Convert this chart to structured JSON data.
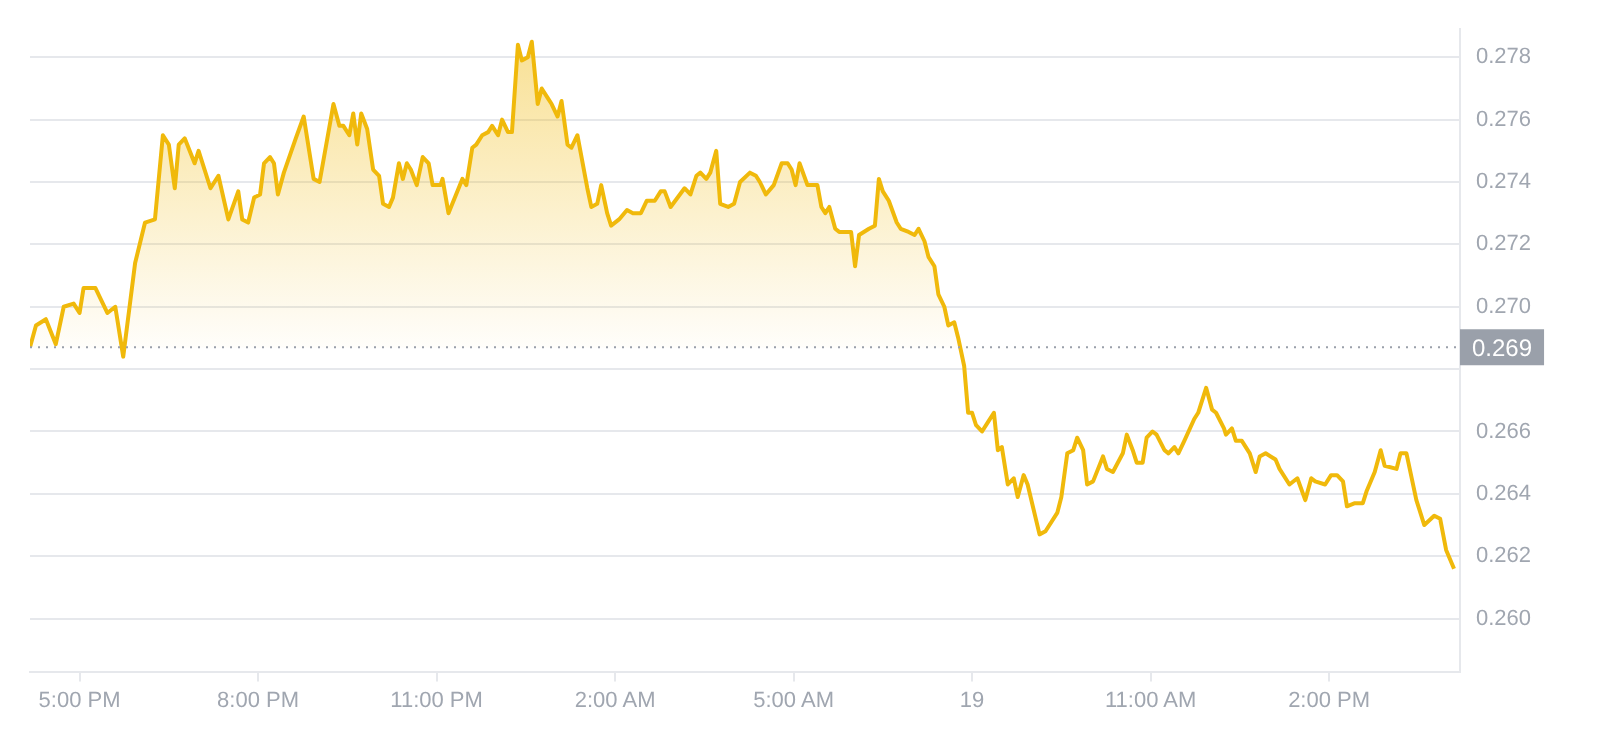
{
  "chart_data": {
    "type": "area",
    "x": [
      "--01-18T16:10",
      "--01-18T16:16",
      "--01-18T16:26",
      "--01-18T16:36",
      "--01-18T16:44",
      "--01-18T16:54",
      "--01-18T17:00",
      "--01-18T17:04",
      "--01-18T17:16",
      "--01-18T17:28",
      "--01-18T17:36",
      "--01-18T17:44",
      "--01-18T17:56",
      "--01-18T18:06",
      "--01-18T18:16",
      "--01-18T18:24",
      "--01-18T18:30",
      "--01-18T18:36",
      "--01-18T18:40",
      "--01-18T18:46",
      "--01-18T18:56",
      "--01-18T19:00",
      "--01-18T19:12",
      "--01-18T19:20",
      "--01-18T19:30",
      "--01-18T19:40",
      "--01-18T19:44",
      "--01-18T19:50",
      "--01-18T19:56",
      "--01-18T20:02",
      "--01-18T20:06",
      "--01-18T20:12",
      "--01-18T20:16",
      "--01-18T20:20",
      "--01-18T20:26",
      "--01-18T20:38",
      "--01-18T20:46",
      "--01-18T20:56",
      "--01-18T21:02",
      "--01-18T21:16",
      "--01-18T21:22",
      "--01-18T21:26",
      "--01-18T21:32",
      "--01-18T21:36",
      "--01-18T21:40",
      "--01-18T21:44",
      "--01-18T21:50",
      "--01-18T21:56",
      "--01-18T22:02",
      "--01-18T22:06",
      "--01-18T22:12",
      "--01-18T22:16",
      "--01-18T22:22",
      "--01-18T22:26",
      "--01-18T22:30",
      "--01-18T22:34",
      "--01-18T22:40",
      "--01-18T22:46",
      "--01-18T22:52",
      "--01-18T22:56",
      "--01-18T23:04",
      "--01-18T23:06",
      "--01-18T23:12",
      "--01-18T23:26",
      "--01-18T23:30",
      "--01-18T23:36",
      "--01-18T23:40",
      "--01-18T23:46",
      "--01-18T23:52",
      "--01-18T23:56",
      "--01-19T00:02",
      "--01-19T00:06",
      "--01-19T00:12",
      "--01-19T00:16",
      "--01-19T00:22",
      "--01-19T00:26",
      "--01-19T00:32",
      "--01-19T00:36",
      "--01-19T00:42",
      "--01-19T00:46",
      "--01-19T00:52",
      "--01-19T00:56",
      "--01-19T01:02",
      "--01-19T01:06",
      "--01-19T01:12",
      "--01-19T01:16",
      "--01-19T01:22",
      "--01-19T01:32",
      "--01-19T01:36",
      "--01-19T01:42",
      "--01-19T01:46",
      "--01-19T01:52",
      "--01-19T01:56",
      "--01-19T02:04",
      "--01-19T02:12",
      "--01-19T02:18",
      "--01-19T02:26",
      "--01-19T02:32",
      "--01-19T02:40",
      "--01-19T02:46",
      "--01-19T02:50",
      "--01-19T02:56",
      "--01-19T03:10",
      "--01-19T03:16",
      "--01-19T03:22",
      "--01-19T03:26",
      "--01-19T03:32",
      "--01-19T03:36",
      "--01-19T03:42",
      "--01-19T03:46",
      "--01-19T03:54",
      "--01-19T04:00",
      "--01-19T04:06",
      "--01-19T04:16",
      "--01-19T04:22",
      "--01-19T04:26",
      "--01-19T04:32",
      "--01-19T04:40",
      "--01-19T04:48",
      "--01-19T04:54",
      "--01-19T04:58",
      "--01-19T05:02",
      "--01-19T05:06",
      "--01-19T05:14",
      "--01-19T05:20",
      "--01-19T05:24",
      "--01-19T05:28",
      "--01-19T05:32",
      "--01-19T05:36",
      "--01-19T05:42",
      "--01-19T05:46",
      "--01-19T05:58",
      "--01-19T06:02",
      "--01-19T06:06",
      "--01-19T06:16",
      "--01-19T06:22",
      "--01-19T06:26",
      "--01-19T06:30",
      "--01-19T06:36",
      "--01-19T06:44",
      "--01-19T06:48",
      "--01-19T06:56",
      "--01-19T07:02",
      "--01-19T07:06",
      "--01-19T07:12",
      "--01-19T07:16",
      "--01-19T07:22",
      "--01-19T07:26",
      "--01-19T07:32",
      "--01-19T07:36",
      "--01-19T07:42",
      "--01-19T07:46",
      "--01-19T07:52",
      "--01-19T07:56",
      "--01-19T08:00",
      "--01-19T08:04",
      "--01-19T08:10",
      "--01-19T08:16",
      "--01-19T08:22",
      "--01-19T08:26",
      "--01-19T08:30",
      "--01-19T08:36",
      "--01-19T08:42",
      "--01-19T08:46",
      "--01-19T08:52",
      "--01-19T08:56",
      "--01-19T09:08",
      "--01-19T09:14",
      "--01-19T09:26",
      "--01-19T09:30",
      "--01-19T09:36",
      "--01-19T09:42",
      "--01-19T09:46",
      "--01-19T09:52",
      "--01-19T09:56",
      "--01-19T10:02",
      "--01-19T10:12",
      "--01-19T10:16",
      "--01-19T10:22",
      "--01-19T10:32",
      "--01-19T10:36",
      "--01-19T10:42",
      "--01-19T10:46",
      "--01-19T10:52",
      "--01-19T10:56",
      "--01-19T11:02",
      "--01-19T11:06",
      "--01-19T11:14",
      "--01-19T11:18",
      "--01-19T11:24",
      "--01-19T11:28",
      "--01-19T11:34",
      "--01-19T11:44",
      "--01-19T11:48",
      "--01-19T11:56",
      "--01-19T12:02",
      "--01-19T12:06",
      "--01-19T12:14",
      "--01-19T12:16",
      "--01-19T12:22",
      "--01-19T12:26",
      "--01-19T12:32",
      "--01-19T12:40",
      "--01-19T12:46",
      "--01-19T12:50",
      "--01-19T12:56",
      "--01-19T13:06",
      "--01-19T13:10",
      "--01-19T13:20",
      "--01-19T13:28",
      "--01-19T13:36",
      "--01-19T13:42",
      "--01-19T13:46",
      "--01-19T13:56",
      "--01-19T14:02",
      "--01-19T14:08",
      "--01-19T14:14",
      "--01-19T14:18",
      "--01-19T14:26",
      "--01-19T14:34",
      "--01-19T14:38",
      "--01-19T14:46",
      "--01-19T14:52",
      "--01-19T14:56",
      "--01-19T15:08",
      "--01-19T15:12",
      "--01-19T15:18",
      "--01-19T15:28",
      "--01-19T15:36",
      "--01-19T15:46",
      "--01-19T15:52",
      "--01-19T15:58",
      "--01-19T16:06"
    ],
    "series": [
      {
        "color": "#f0b90b",
        "values": [
          0.2687,
          0.2694,
          0.2696,
          0.2688,
          0.27,
          0.2701,
          0.2698,
          0.2706,
          0.2706,
          0.2698,
          0.27,
          0.2684,
          0.2714,
          0.2727,
          0.2728,
          0.2755,
          0.2752,
          0.2738,
          0.2752,
          0.2754,
          0.2746,
          0.275,
          0.2738,
          0.2742,
          0.2728,
          0.2737,
          0.2728,
          0.2727,
          0.2735,
          0.2736,
          0.2746,
          0.2748,
          0.2746,
          0.2736,
          0.2743,
          0.2754,
          0.2761,
          0.2741,
          0.274,
          0.2765,
          0.2758,
          0.2758,
          0.2755,
          0.2762,
          0.2752,
          0.2762,
          0.2757,
          0.2744,
          0.2742,
          0.2733,
          0.2732,
          0.2735,
          0.2746,
          0.2741,
          0.2746,
          0.2744,
          0.2739,
          0.2748,
          0.2746,
          0.2739,
          0.2739,
          0.2741,
          0.273,
          0.2741,
          0.2739,
          0.2751,
          0.2752,
          0.2755,
          0.2756,
          0.2758,
          0.2755,
          0.276,
          0.2756,
          0.2756,
          0.2784,
          0.2779,
          0.278,
          0.2785,
          0.2765,
          0.277,
          0.2767,
          0.2765,
          0.2761,
          0.2766,
          0.2752,
          0.2751,
          0.2755,
          0.2738,
          0.2732,
          0.2733,
          0.2739,
          0.273,
          0.2726,
          0.2728,
          0.2731,
          0.273,
          0.273,
          0.2734,
          0.2734,
          0.2737,
          0.2737,
          0.2732,
          0.2738,
          0.2736,
          0.2742,
          0.2743,
          0.2741,
          0.2743,
          0.275,
          0.2733,
          0.2732,
          0.2733,
          0.274,
          0.2743,
          0.2742,
          0.274,
          0.2736,
          0.2739,
          0.2746,
          0.2746,
          0.2744,
          0.2739,
          0.2746,
          0.2739,
          0.2739,
          0.2739,
          0.2732,
          0.273,
          0.2732,
          0.2725,
          0.2724,
          0.2724,
          0.2713,
          0.2723,
          0.2725,
          0.2726,
          0.2741,
          0.2737,
          0.2734,
          0.2727,
          0.2725,
          0.2724,
          0.2723,
          0.2725,
          0.2721,
          0.2716,
          0.2713,
          0.2704,
          0.27,
          0.2694,
          0.2695,
          0.269,
          0.2681,
          0.2666,
          0.2666,
          0.2662,
          0.266,
          0.2663,
          0.2666,
          0.2654,
          0.2655,
          0.2643,
          0.2645,
          0.2639,
          0.2646,
          0.2643,
          0.2627,
          0.2628,
          0.2634,
          0.2639,
          0.2653,
          0.2654,
          0.2658,
          0.2654,
          0.2643,
          0.2644,
          0.2652,
          0.2648,
          0.2647,
          0.2653,
          0.2659,
          0.2654,
          0.265,
          0.265,
          0.2658,
          0.266,
          0.2659,
          0.2654,
          0.2653,
          0.2655,
          0.2653,
          0.2657,
          0.2664,
          0.2666,
          0.2674,
          0.2667,
          0.2666,
          0.2661,
          0.2659,
          0.2661,
          0.2657,
          0.2657,
          0.2653,
          0.2647,
          0.2652,
          0.2653,
          0.2651,
          0.2648,
          0.2643,
          0.2645,
          0.2638,
          0.2645,
          0.2644,
          0.2643,
          0.2646,
          0.2646,
          0.2644,
          0.2636,
          0.2637,
          0.2637,
          0.2641,
          0.2647,
          0.2654,
          0.2649,
          0.2648,
          0.2653,
          0.2653,
          0.2638,
          0.263,
          0.2633,
          0.2632,
          0.2622,
          0.2616
        ]
      }
    ],
    "xlim": [
      "--01-18T16:10",
      "--01-19T16:12"
    ],
    "xticks": [
      {
        "value": "--01-18T17:00",
        "label": "5:00 PM"
      },
      {
        "value": "--01-18T20:00",
        "label": "8:00 PM"
      },
      {
        "value": "--01-18T23:00",
        "label": "11:00 PM"
      },
      {
        "value": "--01-19T02:00",
        "label": "2:00 AM"
      },
      {
        "value": "--01-19T05:00",
        "label": "5:00 AM"
      },
      {
        "value": "--01-19T08:00",
        "label": "19"
      },
      {
        "value": "--01-19T11:00",
        "label": "11:00 AM"
      },
      {
        "value": "--01-19T14:00",
        "label": "2:00 PM"
      }
    ],
    "ylim": [
      0.2583,
      0.2789
    ],
    "yticks": [
      {
        "value": 0.26,
        "label": "0.260"
      },
      0.262,
      0.264,
      0.266,
      {
        "value": 0.268,
        "label": null
      },
      {
        "value": 0.27,
        "label": "0.270"
      },
      0.272,
      0.274,
      0.276,
      0.278
    ],
    "ref_lines": [
      {
        "axis": "y",
        "value": 0.2687,
        "label": "0.269",
        "color": "#9aa0aa",
        "line_style": "dotted"
      }
    ],
    "grid": "y",
    "legend": false,
    "marker": "none",
    "line_style": "solid"
  }
}
